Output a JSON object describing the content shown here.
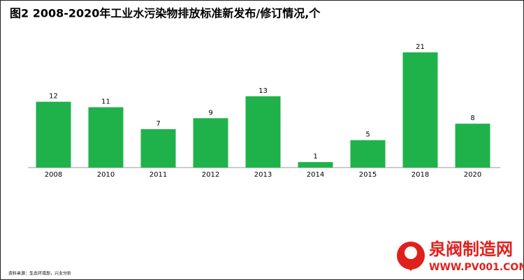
{
  "chart_data": {
    "type": "bar",
    "title": "图2   2008-2020年工业水污染物排放标准新发布/修订情况,个",
    "categories": [
      "2008",
      "2010",
      "2011",
      "2012",
      "2013",
      "2014",
      "2015",
      "2018",
      "2020"
    ],
    "values": [
      12,
      11,
      7,
      9,
      13,
      1,
      5,
      21,
      8
    ],
    "color": "#1fb24a",
    "ylim": [
      0,
      21
    ],
    "source": "资料来源：生态环境部，兴业分析"
  },
  "watermark": {
    "name": "泉阀制造网",
    "url": "WWW.PV001.COM"
  }
}
